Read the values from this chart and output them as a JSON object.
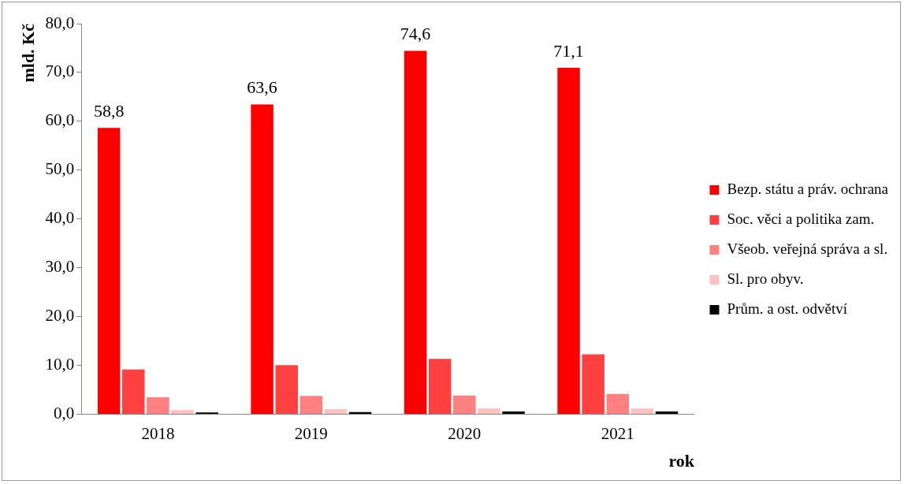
{
  "chart_data": {
    "type": "bar",
    "xlabel": "rok",
    "ylabel": "mld. Kč",
    "categories": [
      "2018",
      "2019",
      "2020",
      "2021"
    ],
    "series": [
      {
        "name": "Bezp. státu a práv. ochrana",
        "color": "#ff0000",
        "values": [
          58.8,
          63.6,
          74.6,
          71.1
        ],
        "value_labels": [
          "58,8",
          "63,6",
          "74,6",
          "71,1"
        ]
      },
      {
        "name": "Soc. věci a politika zam.",
        "color": "#ff4040",
        "values": [
          9.3,
          10.2,
          11.5,
          12.4
        ]
      },
      {
        "name": "Všeob. veřejná správa a sl.",
        "color": "#ff8080",
        "values": [
          3.6,
          3.9,
          4.0,
          4.3
        ]
      },
      {
        "name": "Sl. pro obyv.",
        "color": "#ffc0c0",
        "values": [
          1.0,
          1.2,
          1.3,
          1.3
        ]
      },
      {
        "name": "Prům. a ost. odvětví",
        "color": "#000000",
        "values": [
          0.5,
          0.6,
          0.7,
          0.7
        ]
      }
    ],
    "ylim": [
      0,
      80
    ],
    "yticks": [
      {
        "value": 0,
        "label": "0,0"
      },
      {
        "value": 10,
        "label": "10,0"
      },
      {
        "value": 20,
        "label": "20,0"
      },
      {
        "value": 30,
        "label": "30,0"
      },
      {
        "value": 40,
        "label": "40,0"
      },
      {
        "value": 50,
        "label": "50,0"
      },
      {
        "value": 60,
        "label": "60,0"
      },
      {
        "value": 70,
        "label": "70,0"
      },
      {
        "value": 80,
        "label": "80,0"
      }
    ],
    "grid": false,
    "legend": "right"
  }
}
